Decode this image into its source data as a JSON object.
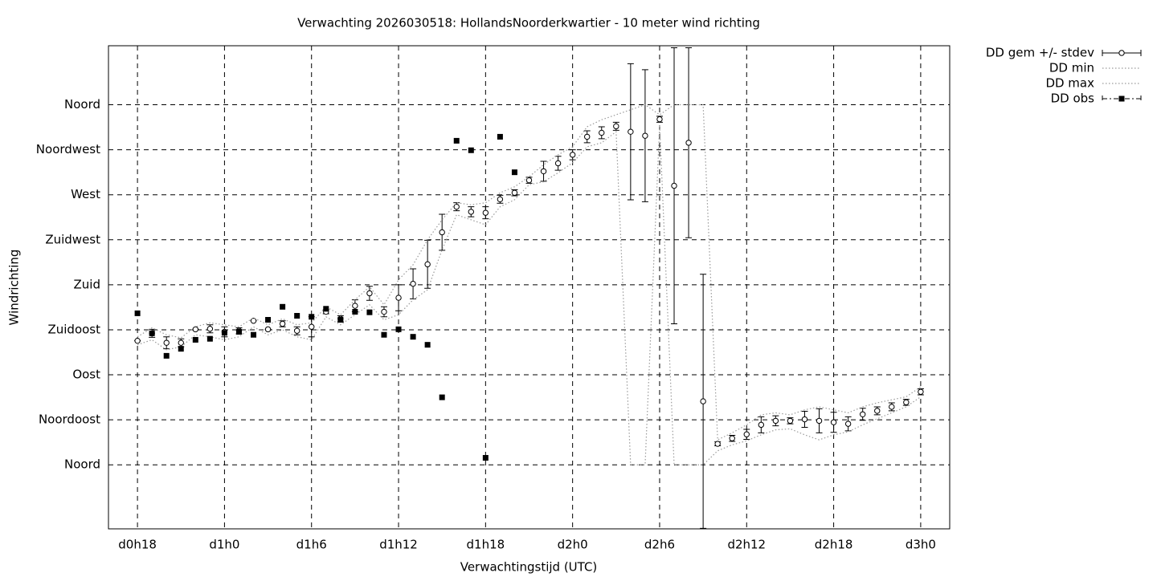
{
  "chart_data": {
    "type": "line",
    "title": "Verwachting 2026030518: HollandsNoorderkwartier - 10 meter wind richting",
    "x_label": "Verwachtingstijd (UTC)",
    "y_label": "Windrichting",
    "xlim": [
      16,
      74
    ],
    "xticks": [
      {
        "value": 18,
        "label": "d0h18"
      },
      {
        "value": 24,
        "label": "d1h0"
      },
      {
        "value": 30,
        "label": "d1h6"
      },
      {
        "value": 36,
        "label": "d1h12"
      },
      {
        "value": 42,
        "label": "d1h18"
      },
      {
        "value": 48,
        "label": "d2h0"
      },
      {
        "value": 54,
        "label": "d2h6"
      },
      {
        "value": 60,
        "label": "d2h12"
      },
      {
        "value": 66,
        "label": "d2h18"
      },
      {
        "value": 72,
        "label": "d3h0"
      }
    ],
    "ylim": [
      -64,
      419
    ],
    "yticks": [
      {
        "value": 0,
        "label": "Noord"
      },
      {
        "value": 45,
        "label": "Noordoost"
      },
      {
        "value": 90,
        "label": "Oost"
      },
      {
        "value": 135,
        "label": "Zuidoost"
      },
      {
        "value": 180,
        "label": "Zuid"
      },
      {
        "value": 225,
        "label": "Zuidwest"
      },
      {
        "value": 270,
        "label": "West"
      },
      {
        "value": 315,
        "label": "Noordwest"
      },
      {
        "value": 360,
        "label": "Noord"
      }
    ],
    "grid": true,
    "legend": "outside-top-right",
    "series": [
      {
        "name": "DD gem +/- stdev",
        "style": "errorbars",
        "color": "#000000",
        "x": [
          18,
          19,
          20,
          21,
          22,
          23,
          24,
          25,
          26,
          27,
          28,
          29,
          30,
          31,
          32,
          33,
          34,
          35,
          36,
          37,
          38,
          39,
          40,
          41,
          42,
          43,
          44,
          45,
          46,
          47,
          48,
          49,
          50,
          51,
          52,
          53,
          54,
          55,
          56,
          57,
          58,
          59,
          60,
          61,
          62,
          63,
          64,
          65,
          66,
          67,
          68,
          69,
          70,
          71,
          72
        ],
        "values": [
          124,
          131.5,
          122,
          122,
          135.5,
          136,
          133,
          134,
          144,
          135.5,
          141,
          134,
          138,
          153,
          146,
          159,
          171.5,
          153,
          167,
          181,
          200.5,
          232.5,
          258,
          253,
          252,
          265.5,
          272,
          284.5,
          293.5,
          301.5,
          310,
          328,
          332,
          338.5,
          333,
          329,
          345.5,
          279,
          322,
          63.5,
          21,
          26.5,
          30.5,
          40,
          44,
          44,
          45.5,
          44,
          42.5,
          41,
          50.5,
          54,
          58,
          62.5,
          73
        ],
        "errors": [
          0,
          4,
          6,
          4,
          0,
          4,
          5,
          3,
          0,
          0,
          3,
          4,
          10,
          2,
          3,
          6,
          7,
          5,
          13,
          15,
          24,
          18,
          4,
          5,
          6,
          4,
          3,
          3,
          10,
          7,
          5,
          6,
          6,
          4,
          68,
          66,
          3,
          138,
          95,
          127,
          2,
          3,
          5,
          8,
          5,
          3,
          8,
          12,
          10,
          7,
          6,
          4,
          4,
          3,
          3
        ]
      },
      {
        "name": "DD min",
        "style": "dotted",
        "color": "#9a9a9a",
        "x": [
          18,
          19,
          20,
          21,
          22,
          23,
          24,
          25,
          26,
          27,
          28,
          29,
          30,
          31,
          32,
          33,
          34,
          35,
          36,
          37,
          38,
          39,
          40,
          41,
          42,
          43,
          44,
          45,
          46,
          47,
          48,
          49,
          50,
          51,
          52,
          53,
          54,
          55,
          56,
          57,
          58,
          59,
          60,
          61,
          62,
          63,
          64,
          65,
          66,
          67,
          68,
          69,
          70,
          71,
          72
        ],
        "values": [
          120,
          125,
          115,
          118,
          130,
          128,
          125,
          128,
          138,
          130,
          135,
          128,
          125,
          148,
          140,
          150,
          160,
          145,
          150,
          165,
          175,
          215,
          250,
          245,
          240,
          258,
          265,
          280,
          283,
          292,
          302,
          318,
          322,
          333,
          0,
          0,
          340,
          0,
          0,
          0,
          14,
          20,
          24,
          30,
          35,
          36,
          30,
          25,
          30,
          33,
          40,
          46,
          52,
          58,
          68
        ]
      },
      {
        "name": "DD max",
        "style": "dotted",
        "color": "#9a9a9a",
        "x": [
          18,
          19,
          20,
          21,
          22,
          23,
          24,
          25,
          26,
          27,
          28,
          29,
          30,
          31,
          32,
          33,
          34,
          35,
          36,
          37,
          38,
          39,
          40,
          41,
          42,
          43,
          44,
          45,
          46,
          47,
          48,
          49,
          50,
          51,
          52,
          53,
          54,
          55,
          56,
          57,
          58,
          59,
          60,
          61,
          62,
          63,
          64,
          65,
          66,
          67,
          68,
          69,
          70,
          71,
          72
        ],
        "values": [
          128,
          137,
          130,
          127,
          138,
          142,
          140,
          138,
          147,
          140,
          146,
          140,
          142,
          158,
          150,
          165,
          178,
          160,
          185,
          200,
          225,
          245,
          262,
          260,
          262,
          272,
          278,
          288,
          300,
          310,
          318,
          338,
          345,
          350,
          355,
          360,
          350,
          360,
          360,
          360,
          25,
          32,
          40,
          50,
          52,
          50,
          55,
          58,
          55,
          52,
          58,
          62,
          65,
          68,
          78
        ]
      },
      {
        "name": "DD obs",
        "style": "points",
        "color": "#000000",
        "x": [
          18,
          19,
          20,
          21,
          22,
          23,
          24,
          25,
          26,
          27,
          28,
          29,
          30,
          31,
          32,
          33,
          34,
          35,
          36,
          37,
          38,
          39,
          40,
          41,
          42,
          43,
          44
        ],
        "values": [
          151.5,
          131.5,
          109,
          116,
          125,
          126,
          132,
          133,
          130,
          145,
          158,
          149,
          148,
          156,
          145,
          153,
          152.5,
          130,
          135.5,
          128,
          120,
          67.5,
          324,
          314.5,
          7,
          328,
          292.5
        ]
      }
    ]
  }
}
